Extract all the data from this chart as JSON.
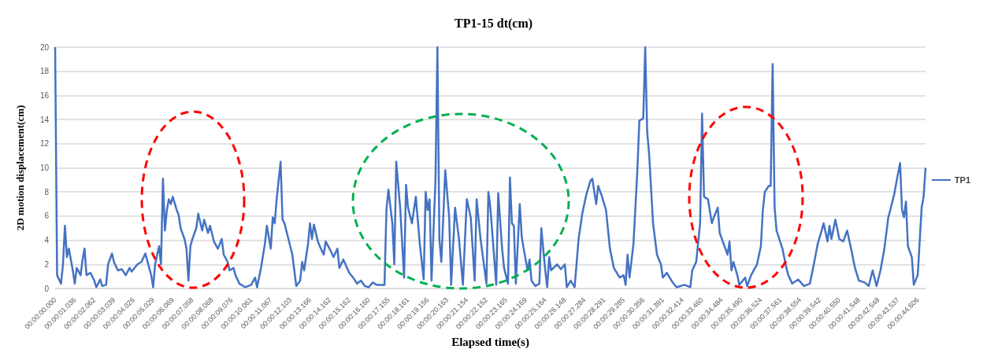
{
  "chart_data": {
    "type": "line",
    "title": "TP1-15 dt(cm)",
    "xlabel": "Elapsed time(s)",
    "ylabel": "2D motion displacement(cm)",
    "legend": "right",
    "grid": "y",
    "ylim": [
      0,
      20
    ],
    "yticks": [
      0,
      2,
      4,
      6,
      8,
      10,
      12,
      14,
      16,
      18,
      20
    ],
    "categories": [
      "00:00:00.000",
      null,
      null,
      null,
      null,
      null,
      null,
      null,
      null,
      null,
      "00:00:01.036",
      null,
      null,
      null,
      null,
      null,
      null,
      null,
      null,
      null,
      "00:00:02.062",
      null,
      null,
      null,
      null,
      null,
      null,
      null,
      null,
      null,
      "00:00:03.039",
      null,
      null,
      null,
      null,
      null,
      null,
      null,
      null,
      null,
      "00:00:04.026",
      null,
      null,
      null,
      null,
      null,
      null,
      null,
      null,
      null,
      "00:00:05.029",
      null,
      null,
      null,
      null,
      null,
      null,
      null,
      null,
      null,
      "00:00:06.069",
      null,
      null,
      null,
      null,
      null,
      null,
      null,
      null,
      null,
      "00:00:07.058",
      null,
      null,
      null,
      null,
      null,
      null,
      null,
      null,
      null,
      "00:00:08.068",
      null,
      null,
      null,
      null,
      null,
      null,
      null,
      null,
      null,
      "00:00:09.076",
      null,
      null,
      null,
      null,
      null,
      null,
      null,
      null,
      null,
      "00:00:10.061",
      null,
      null,
      null,
      null,
      null,
      null,
      null,
      null,
      null,
      "00:00:11.067",
      null,
      null,
      null,
      null,
      null,
      null,
      null,
      null,
      null,
      "00:00:12.103",
      null,
      null,
      null,
      null,
      null,
      null,
      null,
      null,
      null,
      "00:00:13.166",
      null,
      null,
      null,
      null,
      null,
      null,
      null,
      null,
      null,
      "00:00:14.162",
      null,
      null,
      null,
      null,
      null,
      null,
      null,
      null,
      null,
      "00:00:15.162",
      null,
      null,
      null,
      null,
      null,
      null,
      null,
      null,
      null,
      "00:00:16.160",
      null,
      null,
      null,
      null,
      null,
      null,
      null,
      null,
      null,
      "00:00:17.155",
      null,
      null,
      null,
      null,
      null,
      null,
      null,
      null,
      null,
      "00:00:18.161",
      null,
      null,
      null,
      null,
      null,
      null,
      null,
      null,
      null,
      "00:00:19.156",
      null,
      null,
      null,
      null,
      null,
      null,
      null,
      null,
      null,
      "00:00:20.163",
      null,
      null,
      null,
      null,
      null,
      null,
      null,
      null,
      null,
      "00:00:21.154",
      null,
      null,
      null,
      null,
      null,
      null,
      null,
      null,
      null,
      "00:00:22.152",
      null,
      null,
      null,
      null,
      null,
      null,
      null,
      null,
      null,
      "00:00:23.165",
      null,
      null,
      null,
      null,
      null,
      null,
      null,
      null,
      null,
      "00:00:24.169",
      null,
      null,
      null,
      null,
      null,
      null,
      null,
      null,
      null,
      "00:00:25.164",
      null,
      null,
      null,
      null,
      null,
      null,
      null,
      null,
      null,
      "00:00:26.148",
      null,
      null,
      null,
      null,
      null,
      null,
      null,
      null,
      null,
      "00:00:27.284",
      null,
      null,
      null,
      null,
      null,
      null,
      null,
      null,
      null,
      "00:00:28.291",
      null,
      null,
      null,
      null,
      null,
      null,
      null,
      null,
      null,
      "00:00:29.285",
      null,
      null,
      null,
      null,
      null,
      null,
      null,
      null,
      null,
      "00:00:30.356",
      null,
      null,
      null,
      null,
      null,
      null,
      null,
      null,
      null,
      "00:00:31.391",
      null,
      null,
      null,
      null,
      null,
      null,
      null,
      null,
      null,
      "00:00:32.414",
      null,
      null,
      null,
      null,
      null,
      null,
      null,
      null,
      null,
      "00:00:33.460",
      null,
      null,
      null,
      null,
      null,
      null,
      null,
      null,
      null,
      "00:00:34.484",
      null,
      null,
      null,
      null,
      null,
      null,
      null,
      null,
      null,
      "00:00:35.490",
      null,
      null,
      null,
      null,
      null,
      null,
      null,
      null,
      null,
      "00:00:36.524",
      null,
      null,
      null,
      null,
      null,
      null,
      null,
      null,
      null,
      "00:00:37.561",
      null,
      null,
      null,
      null,
      null,
      null,
      null,
      null,
      null,
      "00:00:38.554",
      null,
      null,
      null,
      null,
      null,
      null,
      null,
      null,
      null,
      "00:00:39.542",
      null,
      null,
      null,
      null,
      null,
      null,
      null,
      null,
      null,
      "00:00:40.550",
      null,
      null,
      null,
      null,
      null,
      null,
      null,
      null,
      null,
      "00:00:41.548",
      null,
      null,
      null,
      null,
      null,
      null,
      null,
      null,
      null,
      "00:00:42.548",
      null,
      null,
      null,
      null,
      null,
      null,
      null,
      null,
      null,
      "00:00:43.537",
      null,
      null,
      null,
      null,
      null,
      null,
      null,
      null,
      null,
      "00:00:44.606",
      null,
      null,
      null,
      null
    ],
    "series": [
      {
        "name": "TP1",
        "color": "#4472c4",
        "values": [
          20,
          1.1,
          null,
          0.4,
          2.0,
          5.2,
          2.6,
          3.3,
          null,
          1.5,
          0.4,
          1.7,
          null,
          1.1,
          2.4,
          3.3,
          1.1,
          null,
          1.3,
          null,
          0.65,
          0.1,
          null,
          0.75,
          0.2,
          null,
          0.3,
          2.0,
          null,
          2.9,
          2.2,
          null,
          1.5,
          null,
          1.6,
          null,
          1.1,
          null,
          1.7,
          1.4,
          null,
          null,
          2.0,
          null,
          2.2,
          null,
          2.9,
          null,
          1.7,
          1.1,
          0.1,
          2.0,
          null,
          3.5,
          2.0,
          9.1,
          4.8,
          6.5,
          7.4,
          7.0,
          7.6,
          null,
          6.5,
          6.1,
          5.0,
          null,
          4.1,
          3.3,
          0.65,
          3.5,
          4.1,
          null,
          5.0,
          6.2,
          null,
          4.8,
          5.7,
          null,
          4.6,
          5.2,
          null,
          3.9,
          null,
          3.3,
          null,
          4.1,
          2.8,
          null,
          2.2,
          1.5,
          null,
          1.7,
          1.1,
          null,
          0.4,
          null,
          null,
          0.1,
          null,
          null,
          0.3,
          null,
          0.9,
          0.1,
          null,
          1.7,
          null,
          3.7,
          5.2,
          null,
          3.3,
          5.9,
          5.4,
          7.4,
          null,
          10.5,
          5.7,
          5.4,
          null,
          4.1,
          null,
          2.8,
          null,
          0.2,
          null,
          0.65,
          2.2,
          1.5,
          null,
          3.7,
          5.4,
          4.1,
          5.3,
          null,
          3.9,
          3.5,
          null,
          2.8,
          3.9,
          null,
          3.3,
          null,
          2.6,
          null,
          3.3,
          1.7,
          null,
          2.4,
          null,
          null,
          1.3,
          null,
          0.9,
          null,
          0.4,
          null,
          0.65,
          null,
          0.2,
          null,
          0.1,
          null,
          0.5,
          null,
          0.3,
          null,
          null,
          null,
          0.3,
          6.5,
          8.2,
          null,
          5.4,
          2.0,
          10.5,
          null,
          6.7,
          null,
          0.9,
          8.6,
          6.7,
          null,
          5.4,
          null,
          7.6,
          null,
          3.7,
          null,
          0.75,
          8.0,
          6.5,
          7.4,
          0.65,
          null,
          8.9,
          20,
          4.1,
          2.2,
          null,
          9.8,
          null,
          5.9,
          0.3,
          null,
          6.7,
          null,
          4.1,
          null,
          0.3,
          null,
          7.4,
          null,
          5.9,
          null,
          0.65,
          7.4,
          null,
          4.1,
          null,
          null,
          0.4,
          8.0,
          6.7,
          4.6,
          null,
          0.3,
          7.9,
          null,
          3.3,
          1.7,
          null,
          0.4,
          9.2,
          5.4,
          5.2,
          0.4,
          null,
          7.0,
          4.3,
          3.3,
          null,
          1.5,
          2.4,
          0.65,
          null,
          0.2,
          null,
          0.4,
          5.0,
          null,
          1.5,
          0.1,
          2.6,
          1.5,
          null,
          null,
          2.0,
          null,
          1.6,
          null,
          2.0,
          0.1,
          null,
          0.65,
          null,
          0.1,
          null,
          4.1,
          null,
          6.3,
          null,
          7.8,
          null,
          8.9,
          9.1,
          null,
          7.0,
          8.5,
          null,
          7.6,
          null,
          6.5,
          null,
          3.3,
          null,
          1.7,
          null,
          null,
          0.9,
          null,
          1.1,
          0.3,
          2.8,
          0.9,
          null,
          3.7,
          null,
          9.8,
          13.9,
          null,
          14.1,
          20,
          13.0,
          11.1,
          null,
          5.4,
          null,
          2.8,
          null,
          2.0,
          0.9,
          null,
          1.3,
          null,
          null,
          0.5,
          null,
          0.1,
          null,
          null,
          null,
          0.3,
          null,
          null,
          0.1,
          1.5,
          null,
          2.2,
          null,
          5.4,
          14.5,
          7.6,
          null,
          7.4,
          null,
          5.4,
          5.9,
          null,
          6.7,
          4.6,
          null,
          3.7,
          null,
          2.8,
          3.9,
          1.5,
          2.2,
          null,
          1.1,
          0.3,
          null,
          null,
          0.9,
          0.2,
          null,
          1.1,
          null,
          null,
          2.0,
          null,
          3.5,
          6.5,
          8.0,
          null,
          8.5,
          8.5,
          18.6,
          6.7,
          4.8,
          null,
          null,
          3.3,
          null,
          1.7,
          1.1,
          null,
          0.4,
          null,
          null,
          0.75,
          null,
          null,
          0.2,
          null,
          null,
          0.4,
          null,
          2.0,
          null,
          3.7,
          null,
          4.8,
          5.4,
          null,
          3.9,
          5.2,
          4.1,
          null,
          5.7,
          null,
          4.1,
          null,
          3.9,
          null,
          4.8,
          null,
          3.3,
          null,
          1.7,
          null,
          0.65,
          null,
          null,
          0.5,
          null,
          0.2,
          null,
          1.5,
          null,
          0.2,
          null,
          1.5,
          null,
          3.3,
          null,
          5.9,
          6.5,
          null,
          7.8,
          8.7,
          null,
          10.4,
          6.5,
          5.9,
          7.2,
          3.5,
          null,
          2.6,
          0.3,
          null,
          1.1,
          null,
          6.7,
          7.6,
          10.0
        ]
      }
    ]
  }
}
